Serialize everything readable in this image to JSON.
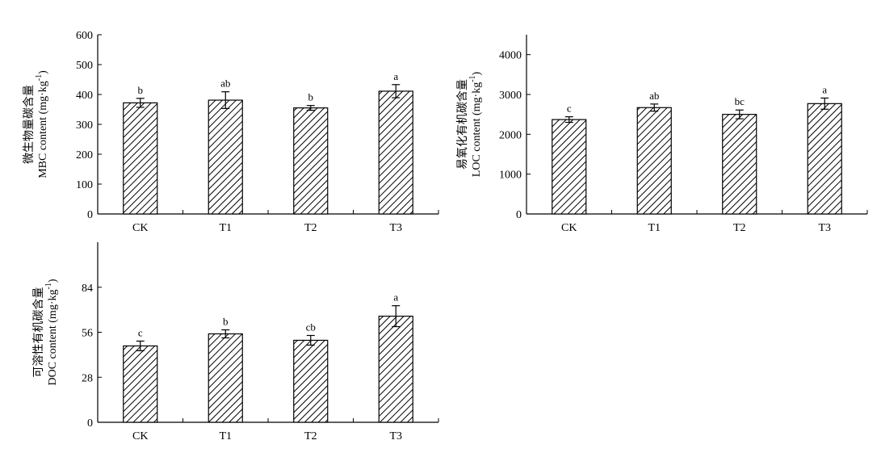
{
  "chart_data": [
    {
      "type": "bar",
      "categories": [
        "CK",
        "T1",
        "T2",
        "T3"
      ],
      "values": [
        372,
        381,
        355,
        411
      ],
      "errors": [
        15,
        28,
        8,
        22
      ],
      "significance": [
        "b",
        "ab",
        "b",
        "a"
      ],
      "ylabel_cn": "微生物量碳含量",
      "ylabel_en": "MBC content (mg·kg",
      "ylabel_sup": "-1",
      "ylabel_close": ")",
      "ylim": [
        0,
        600
      ],
      "yticks": [
        0,
        100,
        200,
        300,
        400,
        500,
        600
      ],
      "pattern": "diagonal-hatch"
    },
    {
      "type": "bar",
      "categories": [
        "CK",
        "T1",
        "T2",
        "T3"
      ],
      "values": [
        2370,
        2670,
        2500,
        2770
      ],
      "errors": [
        70,
        90,
        110,
        140
      ],
      "significance": [
        "c",
        "ab",
        "bc",
        "a"
      ],
      "ylabel_cn": "易氧化有机碳含量",
      "ylabel_en": "LOC content (mg·kg",
      "ylabel_sup": "-1",
      "ylabel_close": ")",
      "ylim": [
        0,
        4500
      ],
      "yticks": [
        0,
        1000,
        2000,
        3000,
        4000
      ],
      "pattern": "diagonal-hatch"
    },
    {
      "type": "bar",
      "categories": [
        "CK",
        "T1",
        "T2",
        "T3"
      ],
      "values": [
        47.5,
        55,
        51,
        66
      ],
      "errors": [
        3,
        2.5,
        3,
        6.5
      ],
      "significance": [
        "c",
        "b",
        "cb",
        "a"
      ],
      "ylabel_cn": "可溶性有机碳含量",
      "ylabel_en": "DOC content (mg·kg",
      "ylabel_sup": "-1",
      "ylabel_close": ")",
      "ylim": [
        0,
        112
      ],
      "yticks": [
        0,
        28,
        56,
        84
      ],
      "pattern": "diagonal-hatch"
    }
  ]
}
